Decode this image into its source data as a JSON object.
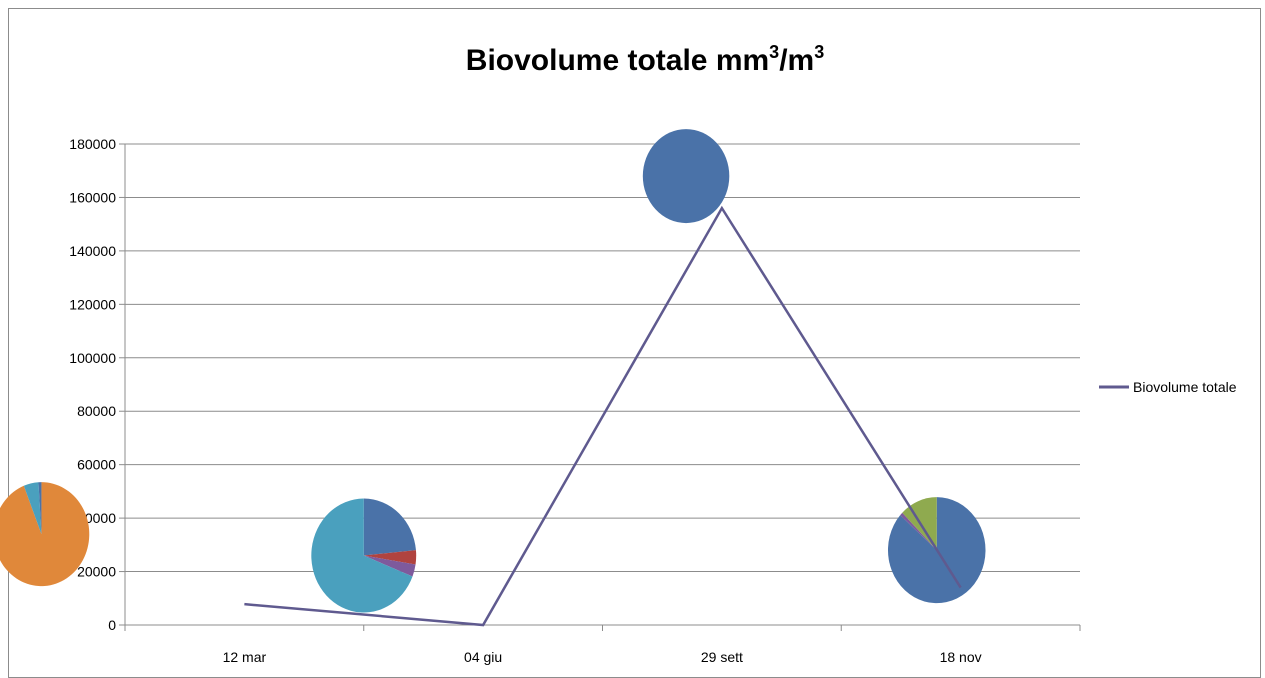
{
  "chart_data": {
    "type": "line",
    "title": "Biovolume totale mm",
    "title_sup1": "3",
    "title_mid": "/m",
    "title_sup2": "3",
    "categories": [
      "12 mar",
      "04 giu",
      "29 sett",
      "18 nov"
    ],
    "series": [
      {
        "name": "Biovolume totale",
        "color": "#5F5A8F",
        "values": [
          7800,
          0,
          156000,
          14000
        ]
      }
    ],
    "y_ticks": [
      "0",
      "20000",
      "40000",
      "60000",
      "80000",
      "100000",
      "120000",
      "140000",
      "160000",
      "180000"
    ],
    "ylim": [
      0,
      180000
    ],
    "grid": true,
    "legend": "right",
    "pie_insets": [
      {
        "category": "12 mar",
        "y_center": 34000,
        "slices": [
          {
            "value": 0.94,
            "color": "#E0883A"
          },
          {
            "value": 0.05,
            "color": "#4AA0BE"
          },
          {
            "value": 0.01,
            "color": "#4A72A8"
          }
        ]
      },
      {
        "category": "04 giu",
        "y_center": 26000,
        "slices": [
          {
            "value": 0.235,
            "color": "#4A72A8"
          },
          {
            "value": 0.04,
            "color": "#B0433F"
          },
          {
            "value": 0.035,
            "color": "#7E5A9C"
          },
          {
            "value": 0.69,
            "color": "#4AA0BE"
          }
        ]
      },
      {
        "category": "29 sett",
        "y_center": 168000,
        "slices": [
          {
            "value": 1.0,
            "color": "#4A72A8"
          }
        ]
      },
      {
        "category": "18 nov",
        "y_center": 28000,
        "slices": [
          {
            "value": 0.865,
            "color": "#4A72A8"
          },
          {
            "value": 0.01,
            "color": "#7E5A9C"
          },
          {
            "value": 0.125,
            "color": "#8FAA4F"
          }
        ]
      }
    ]
  }
}
